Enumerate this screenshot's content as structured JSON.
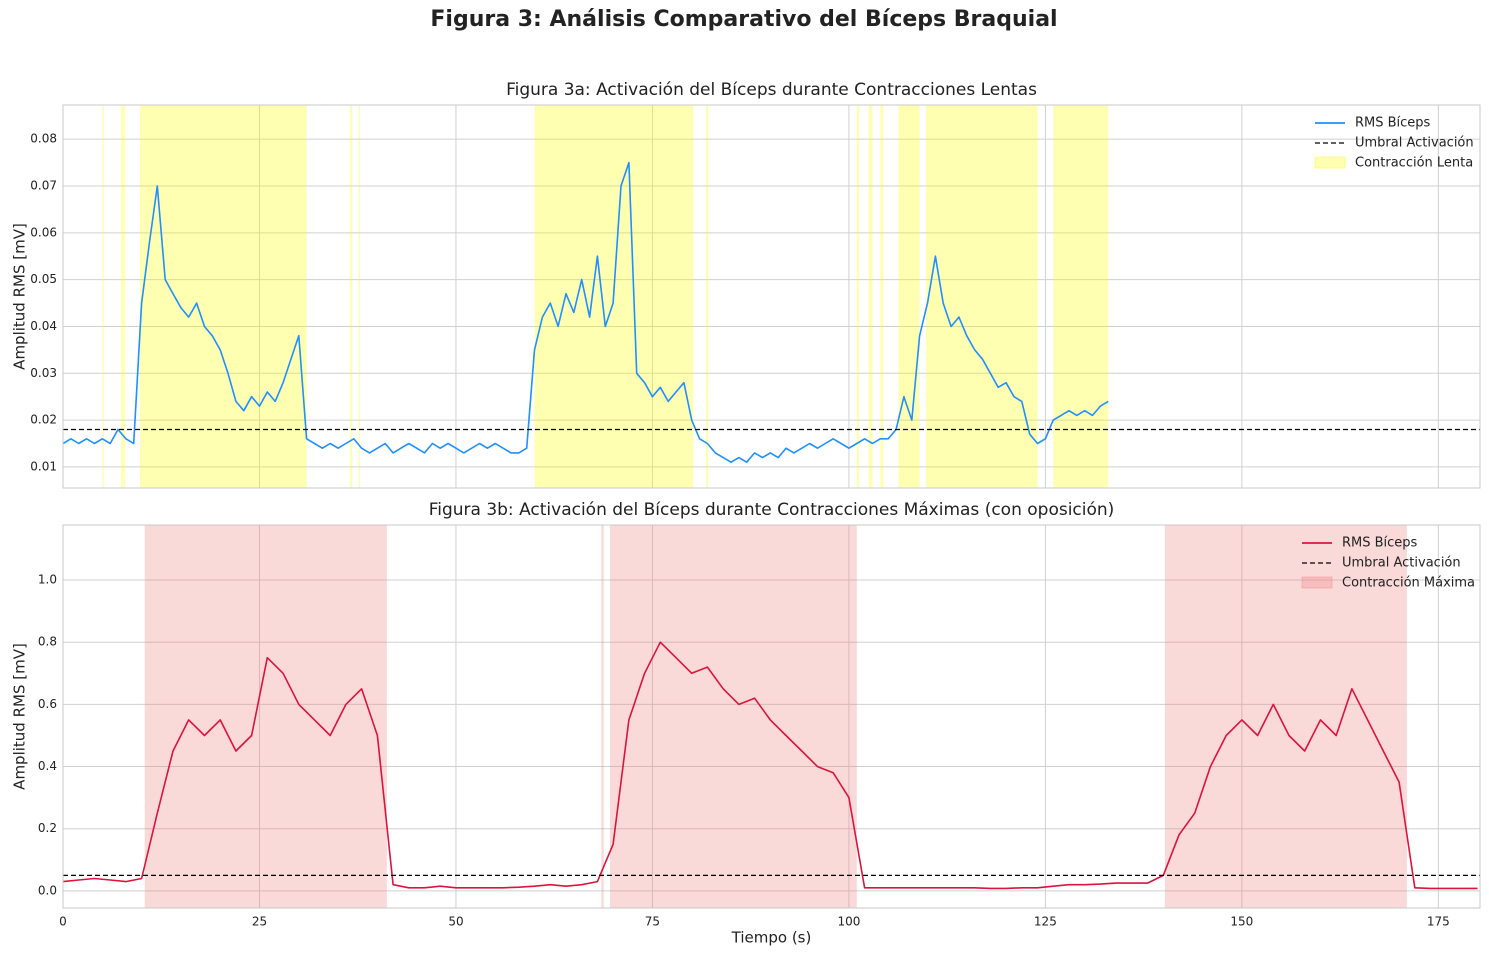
{
  "title": "Figura 3: Análisis Comparativo del Bíceps Braquial",
  "chart_data": [
    {
      "type": "line",
      "title": "Figura 3a: Activación del Bíceps durante Contracciones Lentas",
      "ylabel": "Amplitud RMS [mV]",
      "x": [
        0,
        1,
        2,
        3,
        4,
        5,
        6,
        7,
        8,
        9,
        10,
        11,
        12,
        13,
        14,
        15,
        16,
        17,
        18,
        19,
        20,
        21,
        22,
        23,
        24,
        25,
        26,
        27,
        28,
        29,
        30,
        31,
        32,
        33,
        34,
        35,
        36,
        37,
        38,
        39,
        40,
        41,
        42,
        43,
        44,
        45,
        46,
        47,
        48,
        49,
        50,
        51,
        52,
        53,
        54,
        55,
        56,
        57,
        58,
        59,
        60,
        61,
        62,
        63,
        64,
        65,
        66,
        67,
        68,
        69,
        70,
        71,
        72,
        73,
        74,
        75,
        76,
        77,
        78,
        79,
        80,
        81,
        82,
        83,
        84,
        85,
        86,
        87,
        88,
        89,
        90,
        91,
        92,
        93,
        94,
        95,
        96,
        97,
        98,
        99,
        100,
        101,
        102,
        103,
        104,
        105,
        106,
        107,
        108,
        109,
        110,
        111,
        112,
        113,
        114,
        115,
        116,
        117,
        118,
        119,
        120,
        121,
        122,
        123,
        124,
        125,
        126,
        127,
        128,
        129,
        130,
        131,
        132,
        133
      ],
      "series": [
        {
          "name": "RMS Bíceps",
          "color": "#1e90ff",
          "values": [
            0.015,
            0.016,
            0.015,
            0.016,
            0.015,
            0.016,
            0.015,
            0.018,
            0.016,
            0.015,
            0.045,
            0.058,
            0.07,
            0.05,
            0.047,
            0.044,
            0.042,
            0.045,
            0.04,
            0.038,
            0.035,
            0.03,
            0.024,
            0.022,
            0.025,
            0.023,
            0.026,
            0.024,
            0.028,
            0.033,
            0.038,
            0.016,
            0.015,
            0.014,
            0.015,
            0.014,
            0.015,
            0.016,
            0.014,
            0.013,
            0.014,
            0.015,
            0.013,
            0.014,
            0.015,
            0.014,
            0.013,
            0.015,
            0.014,
            0.015,
            0.014,
            0.013,
            0.014,
            0.015,
            0.014,
            0.015,
            0.014,
            0.013,
            0.013,
            0.014,
            0.035,
            0.042,
            0.045,
            0.04,
            0.047,
            0.043,
            0.05,
            0.042,
            0.055,
            0.04,
            0.045,
            0.07,
            0.075,
            0.03,
            0.028,
            0.025,
            0.027,
            0.024,
            0.026,
            0.028,
            0.02,
            0.016,
            0.015,
            0.013,
            0.012,
            0.011,
            0.012,
            0.011,
            0.013,
            0.012,
            0.013,
            0.012,
            0.014,
            0.013,
            0.014,
            0.015,
            0.014,
            0.015,
            0.016,
            0.015,
            0.014,
            0.015,
            0.016,
            0.015,
            0.016,
            0.016,
            0.018,
            0.025,
            0.02,
            0.038,
            0.045,
            0.055,
            0.045,
            0.04,
            0.042,
            0.038,
            0.035,
            0.033,
            0.03,
            0.027,
            0.028,
            0.025,
            0.024,
            0.017,
            0.015,
            0.016,
            0.02,
            0.021,
            0.022,
            0.021,
            0.022,
            0.021,
            0.023,
            0.024
          ]
        }
      ],
      "threshold": {
        "value": 0.018,
        "label": "Umbral Activación"
      },
      "spans": {
        "label": "Contracción Lenta",
        "color": "#ffff00",
        "ranges": [
          [
            5,
            5.2
          ],
          [
            7.4,
            7.9
          ],
          [
            9.8,
            31
          ],
          [
            36.5,
            36.8
          ],
          [
            37.6,
            37.8
          ],
          [
            60,
            80.2
          ],
          [
            81.8,
            82.1
          ],
          [
            101,
            101.3
          ],
          [
            102.5,
            103
          ],
          [
            104,
            104.4
          ],
          [
            106.3,
            109
          ],
          [
            109.8,
            124
          ],
          [
            126,
            133
          ]
        ]
      },
      "xlim": [
        0,
        180.3
      ],
      "xticks": [
        0,
        25,
        50,
        75,
        100,
        125,
        150,
        175
      ],
      "show_xtick_labels": false,
      "ylim": [
        0.0055,
        0.0873
      ],
      "yticks": [
        0.01,
        0.02,
        0.03,
        0.04,
        0.05,
        0.06,
        0.07,
        0.08
      ],
      "grid": true
    },
    {
      "type": "line",
      "title": "Figura 3b: Activación del Bíceps durante Contracciones Máximas (con oposición)",
      "xlabel": "Tiempo (s)",
      "ylabel": "Amplitud RMS [mV]",
      "x": [
        0,
        2,
        4,
        6,
        8,
        10,
        12,
        14,
        16,
        18,
        20,
        22,
        24,
        26,
        28,
        30,
        32,
        34,
        36,
        38,
        40,
        42,
        44,
        46,
        48,
        50,
        52,
        54,
        56,
        58,
        60,
        62,
        64,
        66,
        68,
        70,
        72,
        74,
        76,
        78,
        80,
        82,
        84,
        86,
        88,
        90,
        92,
        94,
        96,
        98,
        100,
        102,
        104,
        106,
        108,
        110,
        112,
        114,
        116,
        118,
        120,
        122,
        124,
        126,
        128,
        130,
        132,
        134,
        136,
        138,
        140,
        142,
        144,
        146,
        148,
        150,
        152,
        154,
        156,
        158,
        160,
        162,
        164,
        166,
        168,
        170,
        172,
        174,
        176,
        178,
        180
      ],
      "series": [
        {
          "name": "RMS Bíceps",
          "color": "#dc143c",
          "values": [
            0.03,
            0.035,
            0.04,
            0.035,
            0.03,
            0.04,
            0.25,
            0.45,
            0.55,
            0.5,
            0.55,
            0.45,
            0.5,
            0.75,
            0.7,
            0.6,
            0.55,
            0.5,
            0.6,
            0.65,
            0.5,
            0.02,
            0.01,
            0.01,
            0.015,
            0.01,
            0.01,
            0.01,
            0.01,
            0.012,
            0.015,
            0.02,
            0.015,
            0.02,
            0.03,
            0.15,
            0.55,
            0.7,
            0.8,
            0.75,
            0.7,
            0.72,
            0.65,
            0.6,
            0.62,
            0.55,
            0.5,
            0.45,
            0.4,
            0.38,
            0.3,
            0.01,
            0.01,
            0.01,
            0.01,
            0.01,
            0.01,
            0.01,
            0.01,
            0.008,
            0.008,
            0.01,
            0.01,
            0.015,
            0.02,
            0.02,
            0.022,
            0.025,
            0.025,
            0.025,
            0.05,
            0.18,
            0.25,
            0.4,
            0.5,
            0.55,
            0.5,
            0.6,
            0.5,
            0.45,
            0.55,
            0.5,
            0.65,
            0.55,
            0.45,
            0.35,
            0.01,
            0.008,
            0.008,
            0.008,
            0.008
          ]
        }
      ],
      "threshold": {
        "value": 0.05,
        "label": "Umbral Activación"
      },
      "spans": {
        "label": "Contracción Máxima",
        "color": "#f08080",
        "ranges": [
          [
            10.4,
            41.2
          ],
          [
            68.5,
            68.8
          ],
          [
            69.6,
            101
          ],
          [
            140.2,
            171
          ]
        ]
      },
      "xlim": [
        0,
        180.3
      ],
      "xticks": [
        0,
        25,
        50,
        75,
        100,
        125,
        150,
        175
      ],
      "show_xtick_labels": true,
      "ylim": [
        -0.055,
        1.177
      ],
      "yticks": [
        {
          "value": 0,
          "label": "0.0"
        },
        0.2,
        0.4,
        0.6,
        0.8,
        {
          "value": 1,
          "label": "1.0"
        }
      ],
      "grid": true
    }
  ]
}
